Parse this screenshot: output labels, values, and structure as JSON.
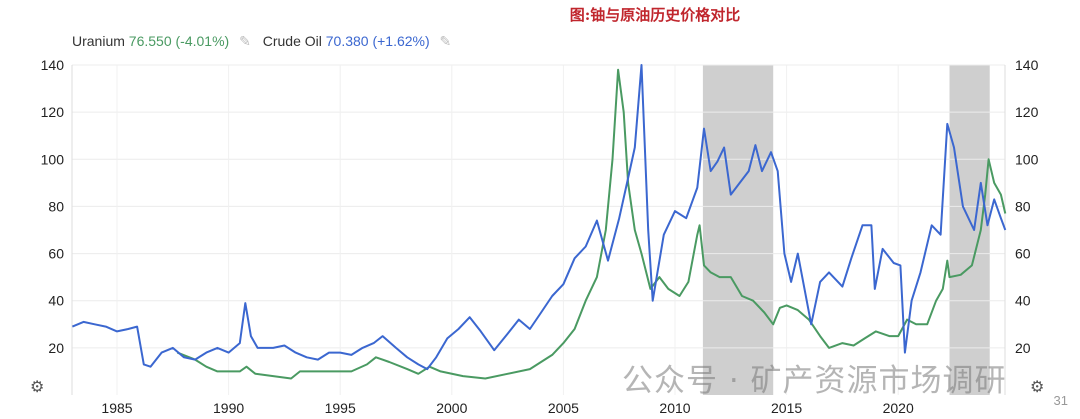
{
  "title": "图:铀与原油历史价格对比",
  "legend": {
    "uranium": {
      "name": "Uranium",
      "value": "76.550 (-4.01%)",
      "color": "#4a9a62"
    },
    "crude": {
      "name": "Crude Oil",
      "value": "70.380 (+1.62%)",
      "color": "#3b67d0"
    },
    "edit_icon": "pencil-icon"
  },
  "watermark": "公众号 · 矿产资源市场调研",
  "page_number": "31",
  "chart_data": {
    "type": "line",
    "xlim": [
      1983,
      2024.8
    ],
    "ylim": [
      0,
      140
    ],
    "x_ticks": [
      "1985",
      "1990",
      "1995",
      "2000",
      "2005",
      "2010",
      "2015",
      "2020"
    ],
    "y_ticks": [
      "20",
      "40",
      "60",
      "80",
      "100",
      "120",
      "140"
    ],
    "grid": true,
    "legend_placement": "top-left",
    "shaded_periods": [
      [
        2011.25,
        2014.4
      ],
      [
        2022.3,
        2024.1
      ]
    ],
    "shade_color": "#cfcfcf",
    "series": [
      {
        "name": "Crude Oil",
        "color": "#3b67d0",
        "points": [
          [
            1983,
            29
          ],
          [
            1983.5,
            31
          ],
          [
            1984,
            30
          ],
          [
            1984.5,
            29
          ],
          [
            1985,
            27
          ],
          [
            1985.5,
            28
          ],
          [
            1985.9,
            29
          ],
          [
            1986.2,
            13
          ],
          [
            1986.5,
            12
          ],
          [
            1987,
            18
          ],
          [
            1987.5,
            20
          ],
          [
            1988,
            16
          ],
          [
            1988.5,
            15
          ],
          [
            1989,
            18
          ],
          [
            1989.5,
            20
          ],
          [
            1990,
            18
          ],
          [
            1990.5,
            22
          ],
          [
            1990.75,
            39
          ],
          [
            1991,
            25
          ],
          [
            1991.3,
            20
          ],
          [
            1992,
            20
          ],
          [
            1992.5,
            21
          ],
          [
            1993,
            18
          ],
          [
            1993.5,
            16
          ],
          [
            1994,
            15
          ],
          [
            1994.5,
            18
          ],
          [
            1995,
            18
          ],
          [
            1995.5,
            17
          ],
          [
            1996,
            20
          ],
          [
            1996.5,
            22
          ],
          [
            1996.9,
            25
          ],
          [
            1997.5,
            20
          ],
          [
            1998,
            16
          ],
          [
            1998.5,
            13
          ],
          [
            1998.9,
            11
          ],
          [
            1999.3,
            16
          ],
          [
            1999.8,
            24
          ],
          [
            2000.3,
            28
          ],
          [
            2000.8,
            33
          ],
          [
            2001.3,
            27
          ],
          [
            2001.9,
            19
          ],
          [
            2002.5,
            26
          ],
          [
            2003,
            32
          ],
          [
            2003.5,
            28
          ],
          [
            2004,
            35
          ],
          [
            2004.5,
            42
          ],
          [
            2005,
            47
          ],
          [
            2005.5,
            58
          ],
          [
            2006,
            63
          ],
          [
            2006.5,
            74
          ],
          [
            2007,
            57
          ],
          [
            2007.5,
            75
          ],
          [
            2007.9,
            92
          ],
          [
            2008.2,
            105
          ],
          [
            2008.5,
            140
          ],
          [
            2008.8,
            70
          ],
          [
            2009,
            40
          ],
          [
            2009.5,
            68
          ],
          [
            2010,
            78
          ],
          [
            2010.5,
            75
          ],
          [
            2011,
            88
          ],
          [
            2011.3,
            113
          ],
          [
            2011.6,
            95
          ],
          [
            2011.9,
            99
          ],
          [
            2012.2,
            105
          ],
          [
            2012.5,
            85
          ],
          [
            2012.9,
            90
          ],
          [
            2013.3,
            95
          ],
          [
            2013.6,
            106
          ],
          [
            2013.9,
            95
          ],
          [
            2014.3,
            103
          ],
          [
            2014.6,
            95
          ],
          [
            2014.9,
            60
          ],
          [
            2015.2,
            48
          ],
          [
            2015.5,
            60
          ],
          [
            2015.8,
            45
          ],
          [
            2016.1,
            30
          ],
          [
            2016.5,
            48
          ],
          [
            2016.9,
            52
          ],
          [
            2017.5,
            46
          ],
          [
            2017.9,
            58
          ],
          [
            2018.4,
            72
          ],
          [
            2018.8,
            72
          ],
          [
            2018.95,
            45
          ],
          [
            2019.3,
            62
          ],
          [
            2019.8,
            56
          ],
          [
            2020.1,
            55
          ],
          [
            2020.3,
            18
          ],
          [
            2020.6,
            40
          ],
          [
            2021,
            52
          ],
          [
            2021.5,
            72
          ],
          [
            2021.9,
            68
          ],
          [
            2022.2,
            115
          ],
          [
            2022.5,
            105
          ],
          [
            2022.9,
            80
          ],
          [
            2023.4,
            70
          ],
          [
            2023.7,
            90
          ],
          [
            2024,
            72
          ],
          [
            2024.3,
            83
          ],
          [
            2024.6,
            75
          ],
          [
            2024.8,
            70
          ]
        ]
      },
      {
        "name": "Uranium",
        "color": "#4a9a62",
        "points": [
          [
            1987.7,
            18
          ],
          [
            1988.5,
            15
          ],
          [
            1989,
            12
          ],
          [
            1989.5,
            10
          ],
          [
            1990.5,
            10
          ],
          [
            1990.8,
            12
          ],
          [
            1991.2,
            9
          ],
          [
            1992,
            8
          ],
          [
            1992.8,
            7
          ],
          [
            1993.2,
            10
          ],
          [
            1994.5,
            10
          ],
          [
            1995.5,
            10
          ],
          [
            1996.2,
            13
          ],
          [
            1996.6,
            16
          ],
          [
            1997.2,
            14
          ],
          [
            1998,
            11
          ],
          [
            1998.5,
            9
          ],
          [
            1999,
            12
          ],
          [
            1999.5,
            10
          ],
          [
            2000.5,
            8
          ],
          [
            2001.5,
            7
          ],
          [
            2002.5,
            9
          ],
          [
            2003.5,
            11
          ],
          [
            2004.5,
            17
          ],
          [
            2005,
            22
          ],
          [
            2005.5,
            28
          ],
          [
            2006,
            40
          ],
          [
            2006.5,
            50
          ],
          [
            2006.9,
            70
          ],
          [
            2007.2,
            100
          ],
          [
            2007.45,
            138
          ],
          [
            2007.7,
            120
          ],
          [
            2007.9,
            90
          ],
          [
            2008.2,
            70
          ],
          [
            2008.5,
            60
          ],
          [
            2008.9,
            45
          ],
          [
            2009.3,
            50
          ],
          [
            2009.7,
            45
          ],
          [
            2010.2,
            42
          ],
          [
            2010.6,
            48
          ],
          [
            2011,
            68
          ],
          [
            2011.1,
            72
          ],
          [
            2011.3,
            55
          ],
          [
            2011.6,
            52
          ],
          [
            2012,
            50
          ],
          [
            2012.5,
            50
          ],
          [
            2013,
            42
          ],
          [
            2013.5,
            40
          ],
          [
            2014,
            35
          ],
          [
            2014.4,
            30
          ],
          [
            2014.7,
            37
          ],
          [
            2015,
            38
          ],
          [
            2015.5,
            36
          ],
          [
            2016,
            32
          ],
          [
            2016.5,
            25
          ],
          [
            2016.9,
            20
          ],
          [
            2017.5,
            22
          ],
          [
            2018,
            21
          ],
          [
            2018.5,
            24
          ],
          [
            2019,
            27
          ],
          [
            2019.6,
            25
          ],
          [
            2020,
            25
          ],
          [
            2020.4,
            32
          ],
          [
            2020.8,
            30
          ],
          [
            2021.3,
            30
          ],
          [
            2021.7,
            40
          ],
          [
            2022,
            45
          ],
          [
            2022.2,
            57
          ],
          [
            2022.3,
            50
          ],
          [
            2022.8,
            51
          ],
          [
            2023.3,
            55
          ],
          [
            2023.7,
            70
          ],
          [
            2023.9,
            85
          ],
          [
            2024.05,
            100
          ],
          [
            2024.3,
            90
          ],
          [
            2024.6,
            85
          ],
          [
            2024.8,
            77
          ]
        ]
      }
    ]
  }
}
